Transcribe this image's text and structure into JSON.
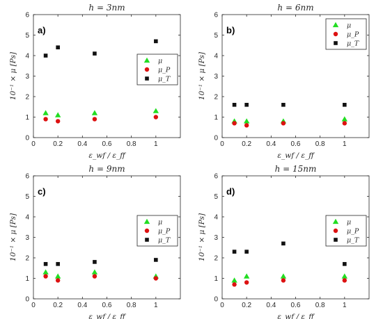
{
  "colors": {
    "mu": "#22dd22",
    "mu_p": "#dd1111",
    "mu_t": "#111111"
  },
  "chart_data": [
    {
      "type": "scatter",
      "title": "h = 3nm",
      "panel_label": "a)",
      "xlabel": "ε_wf / ε_ff",
      "ylabel": "10⁻¹ × μ [Ps]",
      "xlim": [
        0,
        1.2
      ],
      "ylim": [
        0,
        6
      ],
      "xticks": [
        0,
        0.2,
        0.4,
        0.6,
        0.8,
        1
      ],
      "yticks": [
        0,
        1,
        2,
        3,
        4,
        5,
        6
      ],
      "legend_position": "center-right",
      "x": [
        0.1,
        0.2,
        0.5,
        1.0
      ],
      "series": [
        {
          "name": "μ",
          "marker": "triangle",
          "values": [
            1.2,
            1.1,
            1.2,
            1.3
          ]
        },
        {
          "name": "μ_P",
          "marker": "circle",
          "values": [
            0.9,
            0.8,
            0.9,
            1.0
          ]
        },
        {
          "name": "μ_T",
          "marker": "square",
          "values": [
            4.0,
            4.4,
            4.1,
            4.7
          ]
        }
      ]
    },
    {
      "type": "scatter",
      "title": "h = 6nm",
      "panel_label": "b)",
      "xlabel": "ε_wf / ε_ff",
      "ylabel": "10⁻¹ × μ [Ps]",
      "xlim": [
        0,
        1.2
      ],
      "ylim": [
        0,
        6
      ],
      "xticks": [
        0,
        0.2,
        0.4,
        0.6,
        0.8,
        1
      ],
      "yticks": [
        0,
        1,
        2,
        3,
        4,
        5,
        6
      ],
      "legend_position": "top-right",
      "x": [
        0.1,
        0.2,
        0.5,
        1.0
      ],
      "series": [
        {
          "name": "μ",
          "marker": "triangle",
          "values": [
            0.8,
            0.8,
            0.8,
            0.9
          ]
        },
        {
          "name": "μ_P",
          "marker": "circle",
          "values": [
            0.7,
            0.6,
            0.7,
            0.7
          ]
        },
        {
          "name": "μ_T",
          "marker": "square",
          "values": [
            1.6,
            1.6,
            1.6,
            1.6
          ]
        }
      ]
    },
    {
      "type": "scatter",
      "title": "h = 9nm",
      "panel_label": "c)",
      "xlabel": "ε_wf / ε_ff",
      "ylabel": "10⁻¹ × μ [Ps]",
      "xlim": [
        0,
        1.2
      ],
      "ylim": [
        0,
        6
      ],
      "xticks": [
        0,
        0.2,
        0.4,
        0.6,
        0.8,
        1
      ],
      "yticks": [
        0,
        1,
        2,
        3,
        4,
        5,
        6
      ],
      "legend_position": "center-right",
      "x": [
        0.1,
        0.2,
        0.5,
        1.0
      ],
      "series": [
        {
          "name": "μ",
          "marker": "triangle",
          "values": [
            1.3,
            1.1,
            1.3,
            1.1
          ]
        },
        {
          "name": "μ_P",
          "marker": "circle",
          "values": [
            1.1,
            0.9,
            1.1,
            1.0
          ]
        },
        {
          "name": "μ_T",
          "marker": "square",
          "values": [
            1.7,
            1.7,
            1.8,
            1.9
          ]
        }
      ]
    },
    {
      "type": "scatter",
      "title": "h = 15nm",
      "panel_label": "d)",
      "xlabel": "ε_wf / ε_ff",
      "ylabel": "10⁻¹ × μ [Ps]",
      "xlim": [
        0,
        1.2
      ],
      "ylim": [
        0,
        6
      ],
      "xticks": [
        0,
        0.2,
        0.4,
        0.6,
        0.8,
        1
      ],
      "yticks": [
        0,
        1,
        2,
        3,
        4,
        5,
        6
      ],
      "legend_position": "center-right",
      "x": [
        0.1,
        0.2,
        0.5,
        1.0
      ],
      "series": [
        {
          "name": "μ",
          "marker": "triangle",
          "values": [
            0.9,
            1.1,
            1.1,
            1.1
          ]
        },
        {
          "name": "μ_P",
          "marker": "circle",
          "values": [
            0.7,
            0.8,
            0.9,
            0.9
          ]
        },
        {
          "name": "μ_T",
          "marker": "square",
          "values": [
            2.3,
            2.3,
            2.7,
            1.7
          ]
        }
      ]
    }
  ]
}
